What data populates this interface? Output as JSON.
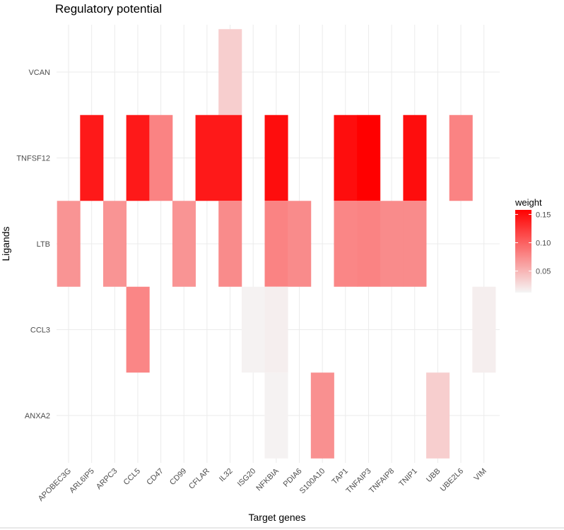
{
  "chart_data": {
    "type": "heatmap",
    "title": "Regulatory potential",
    "xlabel": "Target genes",
    "ylabel": "Ligands",
    "x_categories": [
      "APOBEC3G",
      "ARL6IP5",
      "ARPC3",
      "CCL5",
      "CD47",
      "CD99",
      "CFLAR",
      "IL32",
      "ISG20",
      "NFKBIA",
      "PDIA6",
      "S100A10",
      "TAP1",
      "TNFAIP3",
      "TNFAIP8",
      "TNIP1",
      "UBB",
      "UBE2L6",
      "VIM"
    ],
    "y_categories": [
      "VCAN",
      "TNFSF12",
      "LTB",
      "CCL3",
      "ANXA2"
    ],
    "legend": {
      "title": "weight",
      "ticks": [
        0.05,
        0.1,
        0.15
      ],
      "tick_labels": [
        "0.05",
        "0.10",
        "0.15"
      ],
      "range": [
        0.012,
        0.158
      ],
      "low_color": "#f5f5f5",
      "high_color": "#ff0000",
      "position": "right"
    },
    "cells": [
      {
        "x": "IL32",
        "y": "VCAN",
        "value": 0.035
      },
      {
        "x": "ARL6IP5",
        "y": "TNFSF12",
        "value": 0.143
      },
      {
        "x": "CCL5",
        "y": "TNFSF12",
        "value": 0.143
      },
      {
        "x": "CD47",
        "y": "TNFSF12",
        "value": 0.08
      },
      {
        "x": "CFLAR",
        "y": "TNFSF12",
        "value": 0.143
      },
      {
        "x": "IL32",
        "y": "TNFSF12",
        "value": 0.143
      },
      {
        "x": "NFKBIA",
        "y": "TNFSF12",
        "value": 0.15
      },
      {
        "x": "TAP1",
        "y": "TNFSF12",
        "value": 0.15
      },
      {
        "x": "TNFAIP3",
        "y": "TNFSF12",
        "value": 0.158
      },
      {
        "x": "TNIP1",
        "y": "TNFSF12",
        "value": 0.15
      },
      {
        "x": "UBE2L6",
        "y": "TNFSF12",
        "value": 0.08
      },
      {
        "x": "APOBEC3G",
        "y": "LTB",
        "value": 0.07
      },
      {
        "x": "ARPC3",
        "y": "LTB",
        "value": 0.07
      },
      {
        "x": "CD99",
        "y": "LTB",
        "value": 0.07
      },
      {
        "x": "IL32",
        "y": "LTB",
        "value": 0.075
      },
      {
        "x": "NFKBIA",
        "y": "LTB",
        "value": 0.08
      },
      {
        "x": "PDIA6",
        "y": "LTB",
        "value": 0.075
      },
      {
        "x": "TAP1",
        "y": "LTB",
        "value": 0.078
      },
      {
        "x": "TNFAIP3",
        "y": "LTB",
        "value": 0.08
      },
      {
        "x": "TNFAIP8",
        "y": "LTB",
        "value": 0.075
      },
      {
        "x": "TNIP1",
        "y": "LTB",
        "value": 0.075
      },
      {
        "x": "CCL5",
        "y": "CCL3",
        "value": 0.078
      },
      {
        "x": "ISG20",
        "y": "CCL3",
        "value": 0.014
      },
      {
        "x": "NFKBIA",
        "y": "CCL3",
        "value": 0.016
      },
      {
        "x": "VIM",
        "y": "CCL3",
        "value": 0.016
      },
      {
        "x": "NFKBIA",
        "y": "ANXA2",
        "value": 0.014
      },
      {
        "x": "S100A10",
        "y": "ANXA2",
        "value": 0.072
      },
      {
        "x": "UBB",
        "y": "ANXA2",
        "value": 0.035
      }
    ]
  }
}
